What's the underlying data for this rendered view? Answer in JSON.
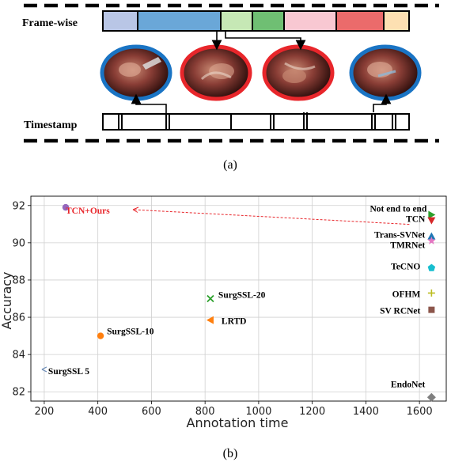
{
  "figure_a": {
    "frame_label": "Frame-wise",
    "timestamp_label": "Timestamp",
    "caption": "(a)",
    "segment_colors": [
      "#b9c6e6",
      "#6aa7d8",
      "#c6e8b5",
      "#6fbf73",
      "#f8c8d2",
      "#eb6b6b",
      "#fde0b2"
    ],
    "thumbnail_rings": [
      "#1a74c4",
      "#e8262b",
      "#e8262b",
      "#1a74c4"
    ]
  },
  "figure_b": {
    "caption": "(b)",
    "chart_data": {
      "type": "scatter",
      "xlabel": "Annotation time",
      "ylabel": "Accuracy",
      "xlim": [
        150,
        1700
      ],
      "ylim": [
        81.5,
        92.5
      ],
      "xticks": [
        200,
        400,
        600,
        800,
        1000,
        1200,
        1400,
        1600
      ],
      "yticks": [
        82,
        84,
        86,
        88,
        90,
        92
      ],
      "grid": true,
      "points": [
        {
          "name": "TCN+Ours",
          "x": 280,
          "y": 91.9,
          "color": "#9467bd",
          "marker": "circle"
        },
        {
          "name": "SurgSSL 5",
          "x": 200,
          "y": 83.2,
          "color": "#6f8fb8",
          "marker": "tri-left-thin"
        },
        {
          "name": "SurgSSL-10",
          "x": 410,
          "y": 85.0,
          "color": "#ff7f0e",
          "marker": "circle"
        },
        {
          "name": "SurgSSL-20",
          "x": 820,
          "y": 87.0,
          "color": "#2ca02c",
          "marker": "x"
        },
        {
          "name": "LRTD",
          "x": 820,
          "y": 85.85,
          "color": "#ff7f0e",
          "marker": "tri-left"
        },
        {
          "name": "Not end to end",
          "x": 1645,
          "y": 91.5,
          "color": "#2ca02c",
          "marker": "tri-right"
        },
        {
          "name": "TCN",
          "x": 1645,
          "y": 91.2,
          "color": "#d62728",
          "marker": "tri-down"
        },
        {
          "name": "Trans-SVNet",
          "x": 1645,
          "y": 90.35,
          "color": "#1f77b4",
          "marker": "tri-up"
        },
        {
          "name": "TMRNet",
          "x": 1645,
          "y": 90.1,
          "color": "#e377c2",
          "marker": "star"
        },
        {
          "name": "TeCNO",
          "x": 1645,
          "y": 88.65,
          "color": "#17becf",
          "marker": "pentagon"
        },
        {
          "name": "OFHM",
          "x": 1645,
          "y": 87.3,
          "color": "#bcbd22",
          "marker": "plus"
        },
        {
          "name": "SV RCNet",
          "x": 1645,
          "y": 86.4,
          "color": "#8c564b",
          "marker": "square"
        },
        {
          "name": "EndoNet",
          "x": 1645,
          "y": 81.7,
          "color": "#7f7f7f",
          "marker": "diamond"
        }
      ],
      "annotation": {
        "text": "TCN+Ours",
        "color": "#e8262b"
      }
    }
  }
}
